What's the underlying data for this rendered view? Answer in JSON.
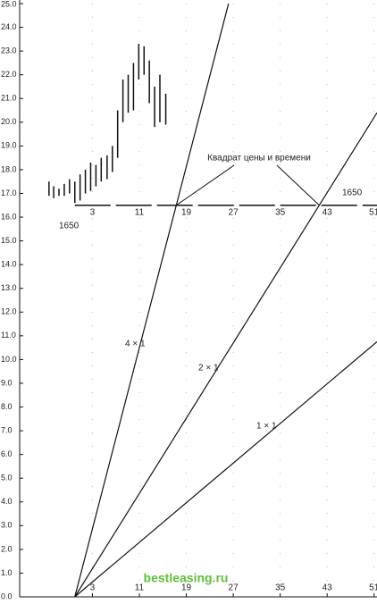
{
  "chart_data": {
    "type": "ohlc",
    "ylim": [
      0,
      25
    ],
    "xlim": [
      -9.4,
      51.5
    ],
    "yticks": [
      {
        "value": 0,
        "label": "0.0"
      },
      {
        "value": 1,
        "label": "1.0"
      },
      {
        "value": 2,
        "label": "2.0"
      },
      {
        "value": 3,
        "label": "3.0"
      },
      {
        "value": 4,
        "label": "4.0"
      },
      {
        "value": 5,
        "label": "5.0"
      },
      {
        "value": 6,
        "label": "6.0"
      },
      {
        "value": 7,
        "label": "7.0"
      },
      {
        "value": 8,
        "label": "8.0"
      },
      {
        "value": 9,
        "label": "9.0"
      },
      {
        "value": 10,
        "label": "10.0"
      },
      {
        "value": 11,
        "label": "11.0"
      },
      {
        "value": 12,
        "label": "12.0"
      },
      {
        "value": 13,
        "label": "13.0"
      },
      {
        "value": 14,
        "label": "14.0"
      },
      {
        "value": 15,
        "label": "15.0"
      },
      {
        "value": 16,
        "label": "16.0"
      },
      {
        "value": 17,
        "label": "17.0"
      },
      {
        "value": 18,
        "label": "18.0"
      },
      {
        "value": 19,
        "label": "19.0"
      },
      {
        "value": 20,
        "label": "20.0"
      },
      {
        "value": 21,
        "label": "21.0"
      },
      {
        "value": 22,
        "label": "22.0"
      },
      {
        "value": 23,
        "label": "23.0"
      },
      {
        "value": 24,
        "label": "24.0"
      },
      {
        "value": 25,
        "label": "25.0"
      }
    ],
    "xticks": [
      3,
      11,
      19,
      27,
      35,
      43,
      51
    ],
    "grid": true,
    "color": "#111111",
    "bars": {
      "x": [
        -4.4,
        -3.6,
        -2.7,
        -1.8,
        -0.9,
        0,
        0.9,
        1.8,
        2.7,
        3.6,
        4.5,
        5.5,
        6.4,
        7.3,
        8.2,
        9.1,
        10,
        10.9,
        11.8,
        12.7,
        13.6,
        14.5,
        15.5
      ],
      "high": [
        17.5,
        17.3,
        17.2,
        17.4,
        17.6,
        17.5,
        17.8,
        18.0,
        18.3,
        18.2,
        18.5,
        18.6,
        19.0,
        20.5,
        21.8,
        22.0,
        22.5,
        23.3,
        23.2,
        22.6,
        21.5,
        22.0,
        21.2
      ],
      "low": [
        16.9,
        16.8,
        16.9,
        16.9,
        17.0,
        16.6,
        16.7,
        17.0,
        17.1,
        17.3,
        17.5,
        17.6,
        17.9,
        18.5,
        20.0,
        20.4,
        20.5,
        21.8,
        22.0,
        20.8,
        19.8,
        20.0,
        19.9
      ]
    },
    "lines": [
      {
        "name": "4 × 1",
        "x": [
          0,
          26.2
        ],
        "values": [
          0,
          25
        ]
      },
      {
        "name": "2 × 1",
        "x": [
          0,
          51.5
        ],
        "values": [
          0,
          20.4
        ]
      },
      {
        "name": "1 × 1",
        "x": [
          0,
          51.5
        ],
        "values": [
          0,
          10.75
        ]
      }
    ],
    "level": 16.5,
    "level_label": "1650",
    "annotation": "Квадрат цены и времени",
    "watermark": "bestleasing.ru"
  }
}
